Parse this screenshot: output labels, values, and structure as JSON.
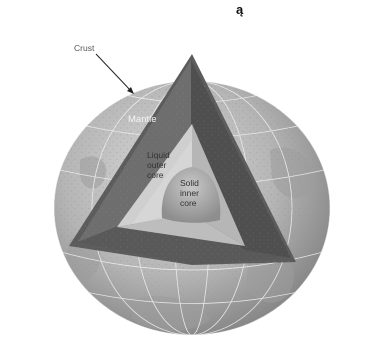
{
  "diagram": {
    "top_mark": "ą",
    "labels": {
      "crust": "Crust",
      "mantle": "Mantle",
      "outer_core": [
        "Liquid",
        "outer",
        "core"
      ],
      "inner_core": [
        "Solid",
        "inner",
        "core"
      ]
    },
    "colors": {
      "mantle": "#6e6e6e",
      "outer_core": "#c9c9c9",
      "inner_core": "#a9a9a9",
      "globe": "#b9b9b9"
    }
  }
}
